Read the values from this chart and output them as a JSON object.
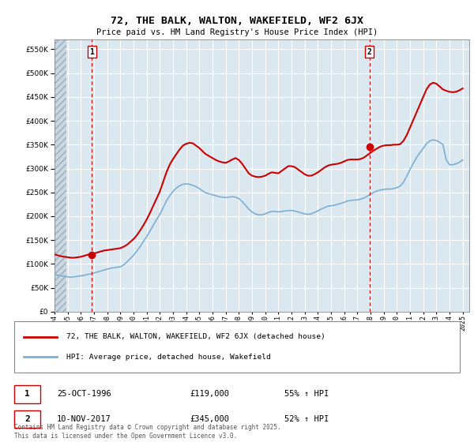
{
  "title": "72, THE BALK, WALTON, WAKEFIELD, WF2 6JX",
  "subtitle": "Price paid vs. HM Land Registry's House Price Index (HPI)",
  "ylim": [
    0,
    570000
  ],
  "yticks": [
    0,
    50000,
    100000,
    150000,
    200000,
    250000,
    300000,
    350000,
    400000,
    450000,
    500000,
    550000
  ],
  "xlim": [
    1994.0,
    2025.5
  ],
  "red_line_color": "#cc0000",
  "blue_line_color": "#7bafd4",
  "grid_color": "#c8d8e8",
  "bg_color": "#ffffff",
  "chart_bg_color": "#dce8f0",
  "purchase1_x": 1996.833,
  "purchase1_y": 119000,
  "purchase2_x": 2017.917,
  "purchase2_y": 345000,
  "purchase1_date": "25-OCT-1996",
  "purchase1_price": "£119,000",
  "purchase1_hpi": "55% ↑ HPI",
  "purchase2_date": "10-NOV-2017",
  "purchase2_price": "£345,000",
  "purchase2_hpi": "52% ↑ HPI",
  "legend_label_red": "72, THE BALK, WALTON, WAKEFIELD, WF2 6JX (detached house)",
  "legend_label_blue": "HPI: Average price, detached house, Wakefield",
  "footnote": "Contains HM Land Registry data © Crown copyright and database right 2025.\nThis data is licensed under the Open Government Licence v3.0.",
  "red_hpi_data": [
    [
      1994.0,
      120000
    ],
    [
      1994.25,
      118000
    ],
    [
      1994.5,
      116000
    ],
    [
      1994.75,
      115000
    ],
    [
      1995.0,
      114000
    ],
    [
      1995.25,
      113000
    ],
    [
      1995.5,
      113000
    ],
    [
      1995.75,
      114000
    ],
    [
      1996.0,
      115000
    ],
    [
      1996.25,
      117000
    ],
    [
      1996.5,
      119000
    ],
    [
      1996.75,
      121000
    ],
    [
      1997.0,
      122000
    ],
    [
      1997.25,
      124000
    ],
    [
      1997.5,
      126000
    ],
    [
      1997.75,
      128000
    ],
    [
      1998.0,
      129000
    ],
    [
      1998.25,
      130000
    ],
    [
      1998.5,
      131000
    ],
    [
      1998.75,
      132000
    ],
    [
      1999.0,
      133000
    ],
    [
      1999.25,
      136000
    ],
    [
      1999.5,
      140000
    ],
    [
      1999.75,
      146000
    ],
    [
      2000.0,
      152000
    ],
    [
      2000.25,
      160000
    ],
    [
      2000.5,
      170000
    ],
    [
      2000.75,
      181000
    ],
    [
      2001.0,
      193000
    ],
    [
      2001.25,
      207000
    ],
    [
      2001.5,
      222000
    ],
    [
      2001.75,
      237000
    ],
    [
      2002.0,
      252000
    ],
    [
      2002.25,
      272000
    ],
    [
      2002.5,
      292000
    ],
    [
      2002.75,
      308000
    ],
    [
      2003.0,
      320000
    ],
    [
      2003.25,
      330000
    ],
    [
      2003.5,
      340000
    ],
    [
      2003.75,
      348000
    ],
    [
      2004.0,
      352000
    ],
    [
      2004.25,
      354000
    ],
    [
      2004.5,
      353000
    ],
    [
      2004.75,
      348000
    ],
    [
      2005.0,
      343000
    ],
    [
      2005.25,
      336000
    ],
    [
      2005.5,
      330000
    ],
    [
      2005.75,
      326000
    ],
    [
      2006.0,
      322000
    ],
    [
      2006.25,
      318000
    ],
    [
      2006.5,
      315000
    ],
    [
      2006.75,
      313000
    ],
    [
      2007.0,
      312000
    ],
    [
      2007.25,
      315000
    ],
    [
      2007.5,
      319000
    ],
    [
      2007.75,
      322000
    ],
    [
      2008.0,
      318000
    ],
    [
      2008.25,
      310000
    ],
    [
      2008.5,
      300000
    ],
    [
      2008.75,
      290000
    ],
    [
      2009.0,
      285000
    ],
    [
      2009.25,
      283000
    ],
    [
      2009.5,
      282000
    ],
    [
      2009.75,
      283000
    ],
    [
      2010.0,
      285000
    ],
    [
      2010.25,
      289000
    ],
    [
      2010.5,
      292000
    ],
    [
      2010.75,
      291000
    ],
    [
      2011.0,
      290000
    ],
    [
      2011.25,
      295000
    ],
    [
      2011.5,
      300000
    ],
    [
      2011.75,
      305000
    ],
    [
      2012.0,
      305000
    ],
    [
      2012.25,
      303000
    ],
    [
      2012.5,
      298000
    ],
    [
      2012.75,
      293000
    ],
    [
      2013.0,
      288000
    ],
    [
      2013.25,
      285000
    ],
    [
      2013.5,
      285000
    ],
    [
      2013.75,
      288000
    ],
    [
      2014.0,
      292000
    ],
    [
      2014.25,
      297000
    ],
    [
      2014.5,
      302000
    ],
    [
      2014.75,
      306000
    ],
    [
      2015.0,
      308000
    ],
    [
      2015.25,
      309000
    ],
    [
      2015.5,
      310000
    ],
    [
      2015.75,
      312000
    ],
    [
      2016.0,
      315000
    ],
    [
      2016.25,
      318000
    ],
    [
      2016.5,
      319000
    ],
    [
      2016.75,
      319000
    ],
    [
      2017.0,
      319000
    ],
    [
      2017.25,
      320000
    ],
    [
      2017.5,
      323000
    ],
    [
      2017.75,
      328000
    ],
    [
      2018.0,
      333000
    ],
    [
      2018.25,
      338000
    ],
    [
      2018.5,
      342000
    ],
    [
      2018.75,
      346000
    ],
    [
      2019.0,
      348000
    ],
    [
      2019.25,
      349000
    ],
    [
      2019.5,
      349000
    ],
    [
      2019.75,
      350000
    ],
    [
      2020.0,
      350000
    ],
    [
      2020.25,
      351000
    ],
    [
      2020.5,
      358000
    ],
    [
      2020.75,
      370000
    ],
    [
      2021.0,
      386000
    ],
    [
      2021.25,
      402000
    ],
    [
      2021.5,
      418000
    ],
    [
      2021.75,
      434000
    ],
    [
      2022.0,
      450000
    ],
    [
      2022.25,
      466000
    ],
    [
      2022.5,
      476000
    ],
    [
      2022.75,
      480000
    ],
    [
      2023.0,
      478000
    ],
    [
      2023.25,
      472000
    ],
    [
      2023.5,
      466000
    ],
    [
      2023.75,
      463000
    ],
    [
      2024.0,
      461000
    ],
    [
      2024.25,
      460000
    ],
    [
      2024.5,
      461000
    ],
    [
      2024.75,
      464000
    ],
    [
      2025.0,
      468000
    ]
  ],
  "blue_hpi_data": [
    [
      1994.0,
      78000
    ],
    [
      1994.25,
      76000
    ],
    [
      1994.5,
      75000
    ],
    [
      1994.75,
      74000
    ],
    [
      1995.0,
      73000
    ],
    [
      1995.25,
      72000
    ],
    [
      1995.5,
      73000
    ],
    [
      1995.75,
      74000
    ],
    [
      1996.0,
      75000
    ],
    [
      1996.25,
      76000
    ],
    [
      1996.5,
      78000
    ],
    [
      1996.75,
      79000
    ],
    [
      1997.0,
      81000
    ],
    [
      1997.25,
      83000
    ],
    [
      1997.5,
      85000
    ],
    [
      1997.75,
      87000
    ],
    [
      1998.0,
      89000
    ],
    [
      1998.25,
      91000
    ],
    [
      1998.5,
      92000
    ],
    [
      1998.75,
      93000
    ],
    [
      1999.0,
      94000
    ],
    [
      1999.25,
      98000
    ],
    [
      1999.5,
      104000
    ],
    [
      1999.75,
      111000
    ],
    [
      2000.0,
      118000
    ],
    [
      2000.25,
      127000
    ],
    [
      2000.5,
      136000
    ],
    [
      2000.75,
      147000
    ],
    [
      2001.0,
      157000
    ],
    [
      2001.25,
      169000
    ],
    [
      2001.5,
      181000
    ],
    [
      2001.75,
      193000
    ],
    [
      2002.0,
      204000
    ],
    [
      2002.25,
      218000
    ],
    [
      2002.5,
      232000
    ],
    [
      2002.75,
      243000
    ],
    [
      2003.0,
      252000
    ],
    [
      2003.25,
      259000
    ],
    [
      2003.5,
      264000
    ],
    [
      2003.75,
      267000
    ],
    [
      2004.0,
      268000
    ],
    [
      2004.25,
      267000
    ],
    [
      2004.5,
      265000
    ],
    [
      2004.75,
      262000
    ],
    [
      2005.0,
      258000
    ],
    [
      2005.25,
      253000
    ],
    [
      2005.5,
      249000
    ],
    [
      2005.75,
      247000
    ],
    [
      2006.0,
      245000
    ],
    [
      2006.25,
      243000
    ],
    [
      2006.5,
      241000
    ],
    [
      2006.75,
      240000
    ],
    [
      2007.0,
      239000
    ],
    [
      2007.25,
      240000
    ],
    [
      2007.5,
      241000
    ],
    [
      2007.75,
      240000
    ],
    [
      2008.0,
      237000
    ],
    [
      2008.25,
      231000
    ],
    [
      2008.5,
      223000
    ],
    [
      2008.75,
      215000
    ],
    [
      2009.0,
      209000
    ],
    [
      2009.25,
      205000
    ],
    [
      2009.5,
      203000
    ],
    [
      2009.75,
      203000
    ],
    [
      2010.0,
      205000
    ],
    [
      2010.25,
      208000
    ],
    [
      2010.5,
      210000
    ],
    [
      2010.75,
      210000
    ],
    [
      2011.0,
      209000
    ],
    [
      2011.25,
      210000
    ],
    [
      2011.5,
      211000
    ],
    [
      2011.75,
      212000
    ],
    [
      2012.0,
      212000
    ],
    [
      2012.25,
      211000
    ],
    [
      2012.5,
      209000
    ],
    [
      2012.75,
      207000
    ],
    [
      2013.0,
      205000
    ],
    [
      2013.25,
      204000
    ],
    [
      2013.5,
      205000
    ],
    [
      2013.75,
      208000
    ],
    [
      2014.0,
      211000
    ],
    [
      2014.25,
      215000
    ],
    [
      2014.5,
      218000
    ],
    [
      2014.75,
      221000
    ],
    [
      2015.0,
      222000
    ],
    [
      2015.25,
      223000
    ],
    [
      2015.5,
      225000
    ],
    [
      2015.75,
      227000
    ],
    [
      2016.0,
      229000
    ],
    [
      2016.25,
      232000
    ],
    [
      2016.5,
      233000
    ],
    [
      2016.75,
      234000
    ],
    [
      2017.0,
      234000
    ],
    [
      2017.25,
      236000
    ],
    [
      2017.5,
      238000
    ],
    [
      2017.75,
      242000
    ],
    [
      2018.0,
      246000
    ],
    [
      2018.25,
      250000
    ],
    [
      2018.5,
      253000
    ],
    [
      2018.75,
      255000
    ],
    [
      2019.0,
      256000
    ],
    [
      2019.25,
      257000
    ],
    [
      2019.5,
      257000
    ],
    [
      2019.75,
      258000
    ],
    [
      2020.0,
      260000
    ],
    [
      2020.25,
      263000
    ],
    [
      2020.5,
      271000
    ],
    [
      2020.75,
      284000
    ],
    [
      2021.0,
      298000
    ],
    [
      2021.25,
      311000
    ],
    [
      2021.5,
      323000
    ],
    [
      2021.75,
      333000
    ],
    [
      2022.0,
      342000
    ],
    [
      2022.25,
      352000
    ],
    [
      2022.5,
      358000
    ],
    [
      2022.75,
      360000
    ],
    [
      2023.0,
      359000
    ],
    [
      2023.25,
      355000
    ],
    [
      2023.5,
      350000
    ],
    [
      2023.75,
      318000
    ],
    [
      2024.0,
      308000
    ],
    [
      2024.25,
      308000
    ],
    [
      2024.5,
      310000
    ],
    [
      2024.75,
      313000
    ],
    [
      2025.0,
      318000
    ]
  ]
}
